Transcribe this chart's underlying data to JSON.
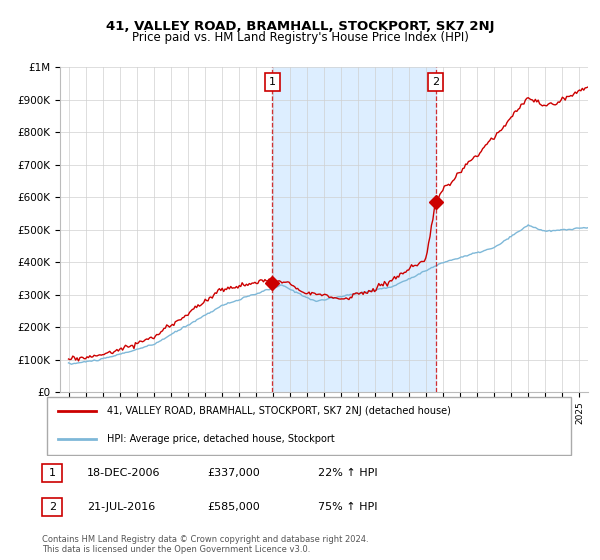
{
  "title": "41, VALLEY ROAD, BRAMHALL, STOCKPORT, SK7 2NJ",
  "subtitle": "Price paid vs. HM Land Registry's House Price Index (HPI)",
  "legend_line1": "41, VALLEY ROAD, BRAMHALL, STOCKPORT, SK7 2NJ (detached house)",
  "legend_line2": "HPI: Average price, detached house, Stockport",
  "annotation1_label": "1",
  "annotation1_date": "18-DEC-2006",
  "annotation1_price": "£337,000",
  "annotation1_hpi": "22% ↑ HPI",
  "annotation1_year": 2006.96,
  "annotation1_value": 337000,
  "annotation2_label": "2",
  "annotation2_date": "21-JUL-2016",
  "annotation2_price": "£585,000",
  "annotation2_hpi": "75% ↑ HPI",
  "annotation2_year": 2016.55,
  "annotation2_value": 585000,
  "footer": "Contains HM Land Registry data © Crown copyright and database right 2024.\nThis data is licensed under the Open Government Licence v3.0.",
  "hpi_color": "#7eb8d8",
  "property_color": "#cc0000",
  "shade_color": "#ddeeff",
  "ylim": [
    0,
    1000000
  ],
  "xlim_start": 1994.5,
  "xlim_end": 2025.5
}
